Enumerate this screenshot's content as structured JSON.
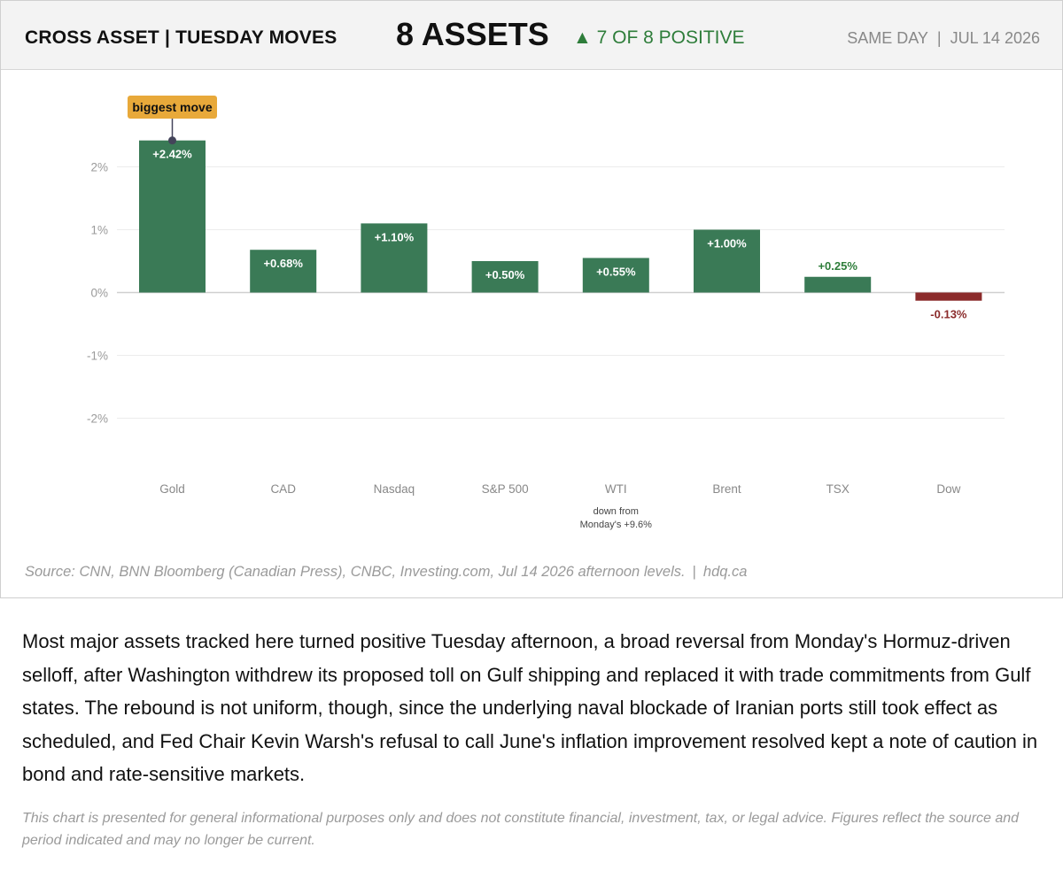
{
  "header": {
    "title": "CROSS ASSET | TUESDAY MOVES",
    "count": "8 ASSETS",
    "positive_arrow": "▲",
    "positive_text": "7 OF 8 POSITIVE",
    "date_left": "SAME DAY",
    "date_sep": "|",
    "date_right": "JUL 14 2026"
  },
  "colors": {
    "positive": "#3a7a56",
    "negative": "#8b2b2b",
    "positive_label": "#2e7d3a",
    "negative_label": "#8b2b2b",
    "callout": "#e8a93a"
  },
  "chart_data": {
    "type": "bar",
    "categories": [
      "Gold",
      "CAD",
      "Nasdaq",
      "S&P 500",
      "WTI",
      "Brent",
      "TSX",
      "Dow"
    ],
    "values": [
      2.42,
      0.68,
      1.1,
      0.5,
      0.55,
      1.0,
      0.25,
      -0.13
    ],
    "data_labels": [
      "+2.42%",
      "+0.68%",
      "+1.10%",
      "+0.50%",
      "+0.55%",
      "+1.00%",
      "+0.25%",
      "-0.13%"
    ],
    "ylim": [
      -2.5,
      2.5
    ],
    "yticks": [
      2,
      1,
      0,
      -1,
      -2
    ],
    "ytick_labels": [
      "2%",
      "1%",
      "0%",
      "-1%",
      "-2%"
    ],
    "grid": true,
    "annotations": [
      {
        "category": "Gold",
        "text": "biggest move",
        "style": "callout"
      },
      {
        "category": "WTI",
        "lines": [
          "down from",
          "Monday's +9.6%"
        ],
        "style": "note-below-axis"
      }
    ]
  },
  "footer": {
    "source": "Source: CNN, BNN Bloomberg (Canadian Press), CNBC, Investing.com, Jul 14 2026 afternoon levels.",
    "source_sep": "|",
    "site": "hdq.ca"
  },
  "body_text": "Most major assets tracked here turned positive Tuesday afternoon, a broad reversal from Monday's Hormuz-driven selloff, after Washington withdrew its proposed toll on Gulf shipping and replaced it with trade commitments from Gulf states. The rebound is not uniform, though, since the underlying naval blockade of Iranian ports still took effect as scheduled, and Fed Chair Kevin Warsh's refusal to call June's inflation improvement resolved kept a note of caution in bond and rate-sensitive markets.",
  "disclaimer": "This chart is presented for general informational purposes only and does not constitute financial, investment, tax, or legal advice. Figures reflect the source and period indicated and may no longer be current."
}
